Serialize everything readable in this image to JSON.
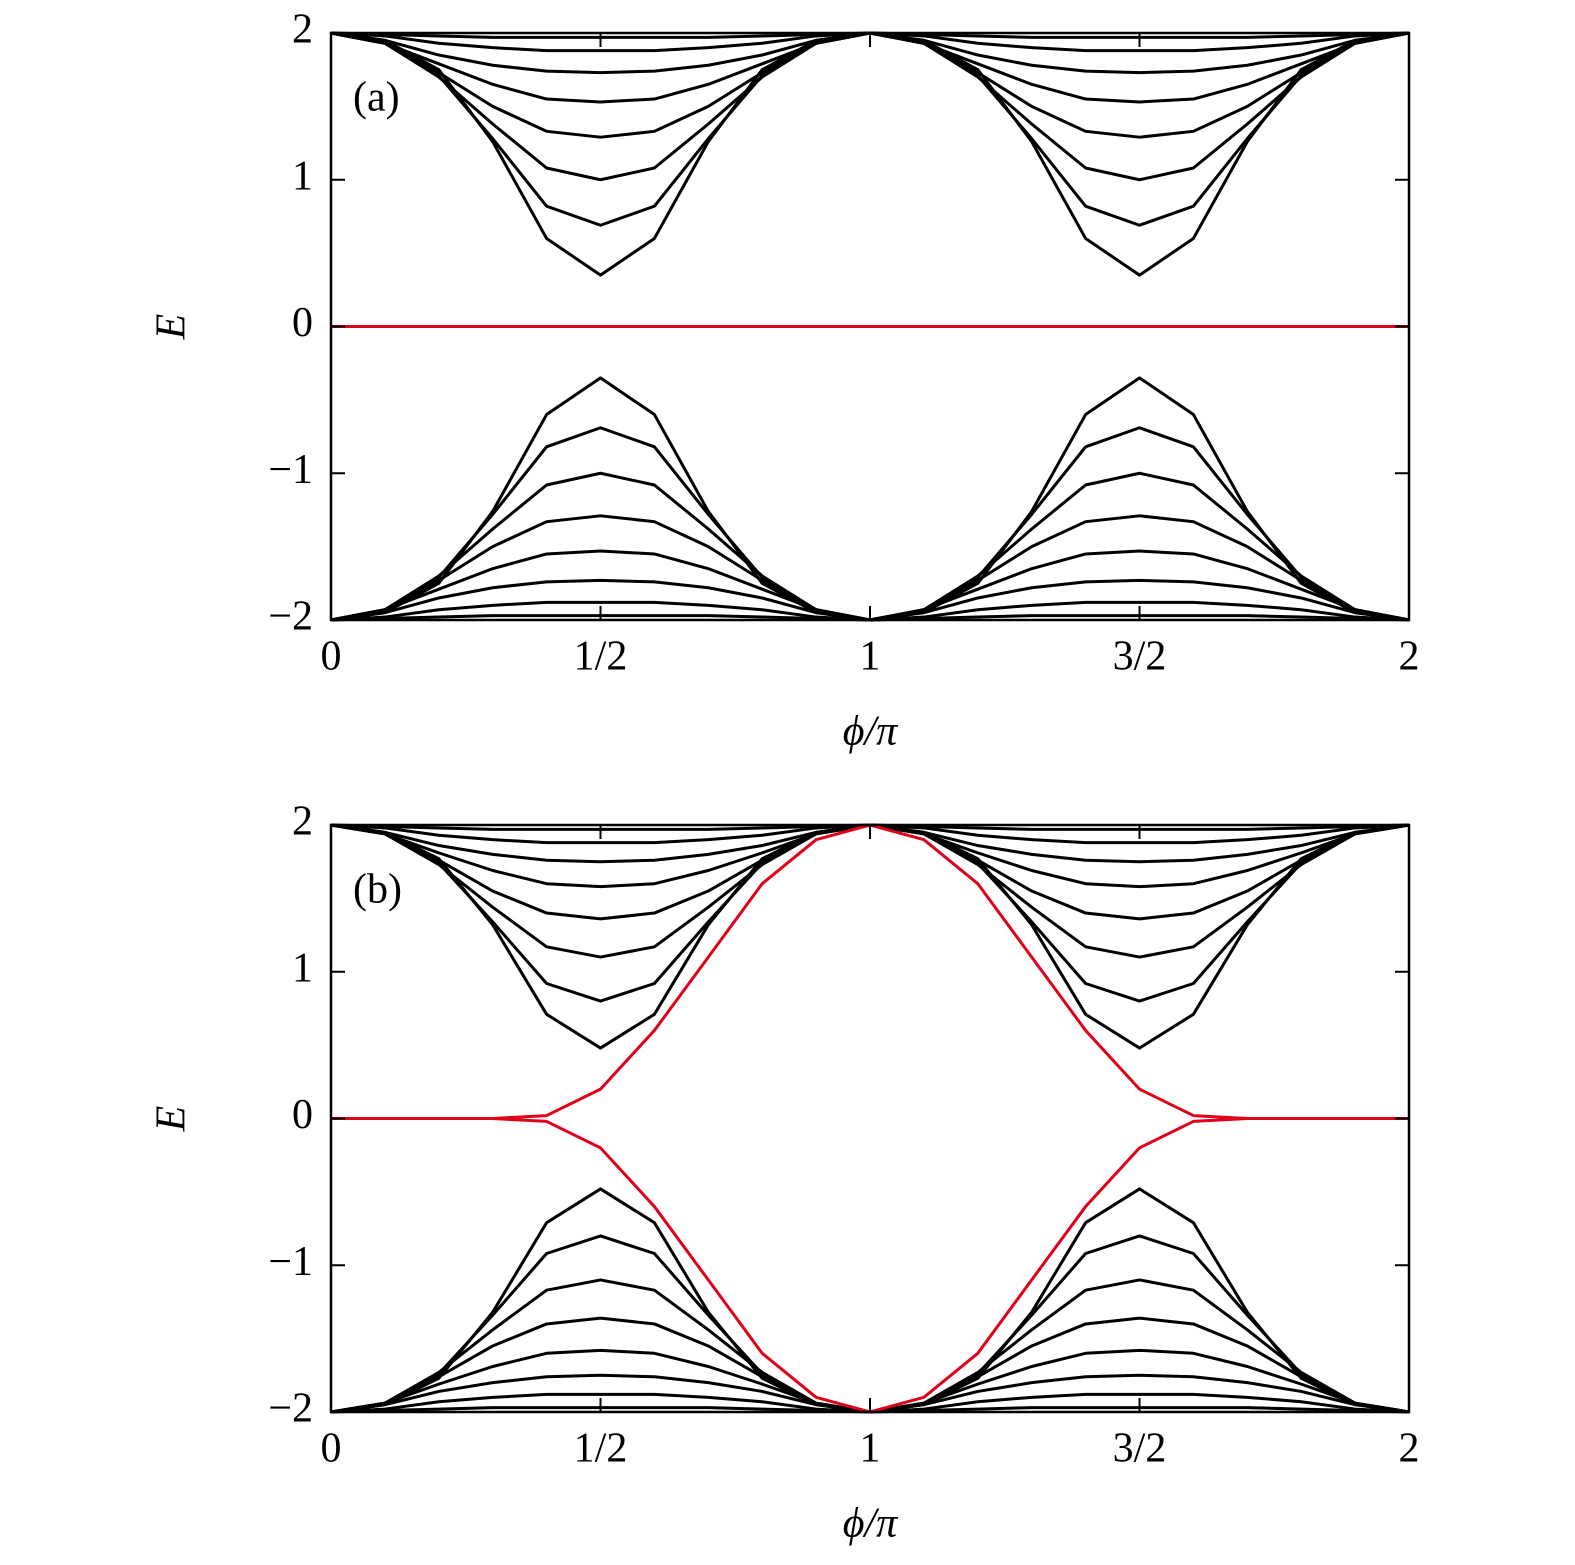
{
  "chart_data": [
    {
      "type": "line",
      "annotation": "(a)",
      "xlabel": "ϕ/π",
      "ylabel": "E",
      "xlim": [
        0,
        2
      ],
      "ylim": [
        -2,
        2
      ],
      "xticks": [
        0,
        {
          "value": 0.5,
          "label": "1/2"
        },
        1,
        {
          "value": 1.5,
          "label": "3/2"
        },
        2
      ],
      "yticks": [
        {
          "value": -2,
          "label": "−2"
        },
        {
          "value": -1,
          "label": "−1"
        },
        0,
        1,
        2
      ],
      "x": [
        0,
        0.1,
        0.2,
        0.3,
        0.4,
        0.5,
        0.6,
        0.7,
        0.8,
        0.9,
        1,
        1.1,
        1.2,
        1.3,
        1.4,
        1.5,
        1.6,
        1.7,
        1.8,
        1.9,
        2
      ],
      "series": [
        {
          "color": "#000000",
          "values": [
            2,
            1.95,
            1.75,
            1.26,
            0.6,
            0.35,
            0.6,
            1.26,
            1.75,
            1.95,
            2,
            1.95,
            1.75,
            1.26,
            0.6,
            0.35,
            0.6,
            1.26,
            1.75,
            1.95,
            2
          ]
        },
        {
          "color": "#000000",
          "values": [
            2,
            1.93,
            1.71,
            1.28,
            0.82,
            0.69,
            0.82,
            1.28,
            1.71,
            1.93,
            2,
            1.93,
            1.71,
            1.28,
            0.82,
            0.69,
            0.82,
            1.28,
            1.71,
            1.93,
            2
          ]
        },
        {
          "color": "#000000",
          "values": [
            2,
            1.93,
            1.7,
            1.38,
            1.08,
            1,
            1.08,
            1.38,
            1.7,
            1.93,
            2,
            1.93,
            1.7,
            1.38,
            1.08,
            1,
            1.08,
            1.38,
            1.7,
            1.93,
            2
          ]
        },
        {
          "color": "#000000",
          "values": [
            2,
            1.93,
            1.73,
            1.5,
            1.33,
            1.29,
            1.33,
            1.5,
            1.73,
            1.93,
            2,
            1.93,
            1.73,
            1.5,
            1.33,
            1.29,
            1.33,
            1.5,
            1.73,
            1.93,
            2
          ]
        },
        {
          "color": "#000000",
          "values": [
            2,
            1.93,
            1.79,
            1.65,
            1.55,
            1.53,
            1.55,
            1.65,
            1.79,
            1.93,
            2,
            1.93,
            1.79,
            1.65,
            1.55,
            1.53,
            1.55,
            1.65,
            1.79,
            1.93,
            2
          ]
        },
        {
          "color": "#000000",
          "values": [
            2,
            1.95,
            1.85,
            1.78,
            1.74,
            1.73,
            1.74,
            1.78,
            1.85,
            1.95,
            2,
            1.95,
            1.85,
            1.78,
            1.74,
            1.73,
            1.74,
            1.78,
            1.85,
            1.95,
            2
          ]
        },
        {
          "color": "#000000",
          "values": [
            2,
            1.98,
            1.93,
            1.9,
            1.88,
            1.88,
            1.88,
            1.9,
            1.93,
            1.98,
            2,
            1.98,
            1.93,
            1.9,
            1.88,
            1.88,
            1.88,
            1.9,
            1.93,
            1.98,
            2
          ]
        },
        {
          "color": "#000000",
          "values": [
            2,
            1.99,
            1.98,
            1.97,
            1.97,
            1.97,
            1.97,
            1.97,
            1.98,
            1.99,
            2,
            1.99,
            1.98,
            1.97,
            1.97,
            1.97,
            1.97,
            1.97,
            1.98,
            1.99,
            2
          ]
        },
        {
          "color": "#000000",
          "values": [
            -2,
            -1.95,
            -1.75,
            -1.26,
            -0.6,
            -0.35,
            -0.6,
            -1.26,
            -1.75,
            -1.95,
            -2,
            -1.95,
            -1.75,
            -1.26,
            -0.6,
            -0.35,
            -0.6,
            -1.26,
            -1.75,
            -1.95,
            -2
          ]
        },
        {
          "color": "#000000",
          "values": [
            -2,
            -1.93,
            -1.71,
            -1.28,
            -0.82,
            -0.69,
            -0.82,
            -1.28,
            -1.71,
            -1.93,
            -2,
            -1.93,
            -1.71,
            -1.28,
            -0.82,
            -0.69,
            -0.82,
            -1.28,
            -1.71,
            -1.93,
            -2
          ]
        },
        {
          "color": "#000000",
          "values": [
            -2,
            -1.93,
            -1.7,
            -1.38,
            -1.08,
            -1,
            -1.08,
            -1.38,
            -1.7,
            -1.93,
            -2,
            -1.93,
            -1.7,
            -1.38,
            -1.08,
            -1,
            -1.08,
            -1.38,
            -1.7,
            -1.93,
            -2
          ]
        },
        {
          "color": "#000000",
          "values": [
            -2,
            -1.93,
            -1.73,
            -1.5,
            -1.33,
            -1.29,
            -1.33,
            -1.5,
            -1.73,
            -1.93,
            -2,
            -1.93,
            -1.73,
            -1.5,
            -1.33,
            -1.29,
            -1.33,
            -1.5,
            -1.73,
            -1.93,
            -2
          ]
        },
        {
          "color": "#000000",
          "values": [
            -2,
            -1.93,
            -1.79,
            -1.65,
            -1.55,
            -1.53,
            -1.55,
            -1.65,
            -1.79,
            -1.93,
            -2,
            -1.93,
            -1.79,
            -1.65,
            -1.55,
            -1.53,
            -1.55,
            -1.65,
            -1.79,
            -1.93,
            -2
          ]
        },
        {
          "color": "#000000",
          "values": [
            -2,
            -1.95,
            -1.85,
            -1.78,
            -1.74,
            -1.73,
            -1.74,
            -1.78,
            -1.85,
            -1.95,
            -2,
            -1.95,
            -1.85,
            -1.78,
            -1.74,
            -1.73,
            -1.74,
            -1.78,
            -1.85,
            -1.95,
            -2
          ]
        },
        {
          "color": "#000000",
          "values": [
            -2,
            -1.98,
            -1.93,
            -1.9,
            -1.88,
            -1.88,
            -1.88,
            -1.9,
            -1.93,
            -1.98,
            -2,
            -1.98,
            -1.93,
            -1.9,
            -1.88,
            -1.88,
            -1.88,
            -1.9,
            -1.93,
            -1.98,
            -2
          ]
        },
        {
          "color": "#000000",
          "values": [
            -2,
            -1.99,
            -1.98,
            -1.97,
            -1.97,
            -1.97,
            -1.97,
            -1.97,
            -1.98,
            -1.99,
            -2,
            -1.99,
            -1.98,
            -1.97,
            -1.97,
            -1.97,
            -1.97,
            -1.97,
            -1.98,
            -1.99,
            -2
          ]
        },
        {
          "color": "#e0001a",
          "values": [
            0,
            0,
            0,
            0,
            0,
            0,
            0,
            0,
            0,
            0,
            0,
            0,
            0,
            0,
            0,
            0,
            0,
            0,
            0,
            0,
            0
          ]
        }
      ]
    },
    {
      "type": "line",
      "annotation": "(b)",
      "xlabel": "ϕ/π",
      "ylabel": "E",
      "xlim": [
        0,
        2
      ],
      "ylim": [
        -2,
        2
      ],
      "xticks": [
        0,
        {
          "value": 0.5,
          "label": "1/2"
        },
        1,
        {
          "value": 1.5,
          "label": "3/2"
        },
        2
      ],
      "yticks": [
        {
          "value": -2,
          "label": "−2"
        },
        {
          "value": -1,
          "label": "−1"
        },
        0,
        1,
        2
      ],
      "x": [
        0,
        0.1,
        0.2,
        0.3,
        0.4,
        0.5,
        0.6,
        0.7,
        0.8,
        0.9,
        1,
        1.1,
        1.2,
        1.3,
        1.4,
        1.5,
        1.6,
        1.7,
        1.8,
        1.9,
        2
      ],
      "series": [
        {
          "color": "#000000",
          "values": [
            2,
            1.95,
            1.77,
            1.32,
            0.71,
            0.48,
            0.71,
            1.32,
            1.77,
            1.95,
            2,
            1.95,
            1.77,
            1.32,
            0.71,
            0.48,
            0.71,
            1.32,
            1.77,
            1.95,
            2
          ]
        },
        {
          "color": "#000000",
          "values": [
            2,
            1.94,
            1.74,
            1.34,
            0.92,
            0.8,
            0.92,
            1.34,
            1.74,
            1.94,
            2,
            1.94,
            1.74,
            1.34,
            0.92,
            0.8,
            0.92,
            1.34,
            1.74,
            1.94,
            2
          ]
        },
        {
          "color": "#000000",
          "values": [
            2,
            1.94,
            1.73,
            1.44,
            1.17,
            1.1,
            1.17,
            1.44,
            1.73,
            1.94,
            2,
            1.94,
            1.73,
            1.44,
            1.17,
            1.1,
            1.17,
            1.44,
            1.73,
            1.94,
            2
          ]
        },
        {
          "color": "#000000",
          "values": [
            2,
            1.94,
            1.76,
            1.55,
            1.4,
            1.36,
            1.4,
            1.55,
            1.76,
            1.94,
            2,
            1.94,
            1.76,
            1.55,
            1.4,
            1.36,
            1.4,
            1.55,
            1.76,
            1.94,
            2
          ]
        },
        {
          "color": "#000000",
          "values": [
            2,
            1.94,
            1.81,
            1.69,
            1.6,
            1.58,
            1.6,
            1.69,
            1.81,
            1.94,
            2,
            1.94,
            1.81,
            1.69,
            1.6,
            1.58,
            1.6,
            1.69,
            1.81,
            1.94,
            2
          ]
        },
        {
          "color": "#000000",
          "values": [
            2,
            1.95,
            1.86,
            1.8,
            1.76,
            1.75,
            1.76,
            1.8,
            1.86,
            1.95,
            2,
            1.95,
            1.86,
            1.8,
            1.76,
            1.75,
            1.76,
            1.8,
            1.86,
            1.95,
            2
          ]
        },
        {
          "color": "#000000",
          "values": [
            2,
            1.98,
            1.93,
            1.9,
            1.88,
            1.88,
            1.88,
            1.9,
            1.93,
            1.98,
            2,
            1.98,
            1.93,
            1.9,
            1.88,
            1.88,
            1.88,
            1.9,
            1.93,
            1.98,
            2
          ]
        },
        {
          "color": "#000000",
          "values": [
            2,
            1.99,
            1.98,
            1.97,
            1.97,
            1.97,
            1.97,
            1.97,
            1.98,
            1.99,
            2,
            1.99,
            1.98,
            1.97,
            1.97,
            1.97,
            1.97,
            1.97,
            1.98,
            1.99,
            2
          ]
        },
        {
          "color": "#000000",
          "values": [
            -2,
            -1.95,
            -1.77,
            -1.32,
            -0.71,
            -0.48,
            -0.71,
            -1.32,
            -1.77,
            -1.95,
            -2,
            -1.95,
            -1.77,
            -1.32,
            -0.71,
            -0.48,
            -0.71,
            -1.32,
            -1.77,
            -1.95,
            -2
          ]
        },
        {
          "color": "#000000",
          "values": [
            -2,
            -1.94,
            -1.74,
            -1.34,
            -0.92,
            -0.8,
            -0.92,
            -1.34,
            -1.74,
            -1.94,
            -2,
            -1.94,
            -1.74,
            -1.34,
            -0.92,
            -0.8,
            -0.92,
            -1.34,
            -1.74,
            -1.94,
            -2
          ]
        },
        {
          "color": "#000000",
          "values": [
            -2,
            -1.94,
            -1.73,
            -1.44,
            -1.17,
            -1.1,
            -1.17,
            -1.44,
            -1.73,
            -1.94,
            -2,
            -1.94,
            -1.73,
            -1.44,
            -1.17,
            -1.1,
            -1.17,
            -1.44,
            -1.73,
            -1.94,
            -2
          ]
        },
        {
          "color": "#000000",
          "values": [
            -2,
            -1.94,
            -1.76,
            -1.55,
            -1.4,
            -1.36,
            -1.4,
            -1.55,
            -1.76,
            -1.94,
            -2,
            -1.94,
            -1.76,
            -1.55,
            -1.4,
            -1.36,
            -1.4,
            -1.55,
            -1.76,
            -1.94,
            -2
          ]
        },
        {
          "color": "#000000",
          "values": [
            -2,
            -1.94,
            -1.81,
            -1.69,
            -1.6,
            -1.58,
            -1.6,
            -1.69,
            -1.81,
            -1.94,
            -2,
            -1.94,
            -1.81,
            -1.69,
            -1.6,
            -1.58,
            -1.6,
            -1.69,
            -1.81,
            -1.94,
            -2
          ]
        },
        {
          "color": "#000000",
          "values": [
            -2,
            -1.95,
            -1.86,
            -1.8,
            -1.76,
            -1.75,
            -1.76,
            -1.8,
            -1.86,
            -1.95,
            -2,
            -1.95,
            -1.86,
            -1.8,
            -1.76,
            -1.75,
            -1.76,
            -1.8,
            -1.86,
            -1.95,
            -2
          ]
        },
        {
          "color": "#000000",
          "values": [
            -2,
            -1.98,
            -1.93,
            -1.9,
            -1.88,
            -1.88,
            -1.88,
            -1.9,
            -1.93,
            -1.98,
            -2,
            -1.98,
            -1.93,
            -1.9,
            -1.88,
            -1.88,
            -1.88,
            -1.9,
            -1.93,
            -1.98,
            -2
          ]
        },
        {
          "color": "#000000",
          "values": [
            -2,
            -1.99,
            -1.98,
            -1.97,
            -1.97,
            -1.97,
            -1.97,
            -1.97,
            -1.98,
            -1.99,
            -2,
            -1.99,
            -1.98,
            -1.97,
            -1.97,
            -1.97,
            -1.97,
            -1.97,
            -1.98,
            -1.99,
            -2
          ]
        },
        {
          "color": "#e0001a",
          "values": [
            0,
            0,
            0,
            0,
            0.02,
            0.2,
            0.6,
            1.1,
            1.6,
            1.9,
            2,
            1.9,
            1.6,
            1.1,
            0.6,
            0.2,
            0.02,
            0,
            0,
            0,
            0
          ]
        },
        {
          "color": "#e0001a",
          "values": [
            0,
            0,
            0,
            0,
            -0.02,
            -0.2,
            -0.6,
            -1.1,
            -1.6,
            -1.9,
            -2,
            -1.9,
            -1.6,
            -1.1,
            -0.6,
            -0.2,
            -0.02,
            0,
            0,
            0,
            0
          ]
        }
      ]
    }
  ]
}
